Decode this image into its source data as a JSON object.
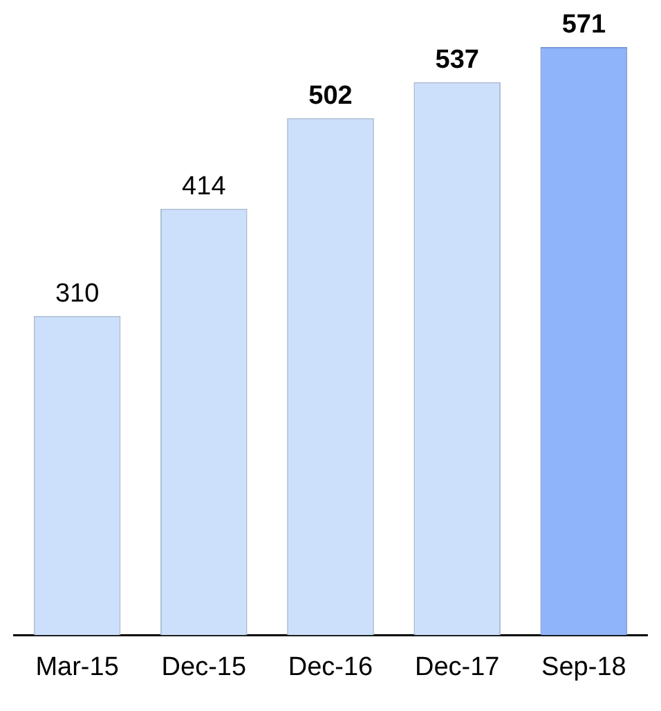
{
  "chart_data": {
    "type": "bar",
    "categories": [
      "Mar-15",
      "Dec-15",
      "Dec-16",
      "Dec-17",
      "Sep-18"
    ],
    "values": [
      310,
      414,
      502,
      537,
      571
    ],
    "colors": [
      "#cce0fb",
      "#cce0fb",
      "#cce0fb",
      "#cce0fb",
      "#8fb4fa"
    ],
    "data_labels": true,
    "grid": false,
    "legend": false,
    "tick_labels": "x"
  }
}
